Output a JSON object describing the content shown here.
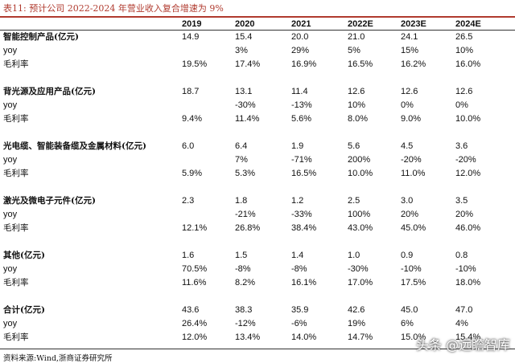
{
  "title": "表11:  预计公司 2022-2024 年营业收入复合增速为 9%",
  "columns": [
    "2019",
    "2020",
    "2021",
    "2022E",
    "2023E",
    "2024E"
  ],
  "segments": [
    {
      "name": "智能控制产品(亿元)",
      "values": [
        "14.9",
        "15.4",
        "20.0",
        "21.0",
        "24.1",
        "26.5"
      ],
      "yoy_label": "yoy",
      "yoy": [
        "",
        "3%",
        "29%",
        "5%",
        "15%",
        "10%"
      ],
      "margin_label": "毛利率",
      "margin": [
        "19.5%",
        "17.4%",
        "16.9%",
        "16.5%",
        "16.2%",
        "16.0%"
      ]
    },
    {
      "name": "背光源及应用产品(亿元)",
      "values": [
        "18.7",
        "13.1",
        "11.4",
        "12.6",
        "12.6",
        "12.6"
      ],
      "yoy_label": "yoy",
      "yoy": [
        "",
        "-30%",
        "-13%",
        "10%",
        "0%",
        "0%"
      ],
      "margin_label": "毛利率",
      "margin": [
        "9.4%",
        "11.4%",
        "5.6%",
        "8.0%",
        "9.0%",
        "10.0%"
      ]
    },
    {
      "name": "光电缆、智能装备缆及金属材料(亿元)",
      "values": [
        "6.0",
        "6.4",
        "1.9",
        "5.6",
        "4.5",
        "3.6"
      ],
      "yoy_label": "yoy",
      "yoy": [
        "",
        "7%",
        "-71%",
        "200%",
        "-20%",
        "-20%"
      ],
      "margin_label": "毛利率",
      "margin": [
        "5.9%",
        "5.3%",
        "16.5%",
        "10.0%",
        "11.0%",
        "12.0%"
      ]
    },
    {
      "name": "激光及微电子元件(亿元)",
      "values": [
        "2.3",
        "1.8",
        "1.2",
        "2.5",
        "3.0",
        "3.5"
      ],
      "yoy_label": "yoy",
      "yoy": [
        "",
        "-21%",
        "-33%",
        "100%",
        "20%",
        "20%"
      ],
      "margin_label": "毛利率",
      "margin": [
        "12.1%",
        "26.8%",
        "38.4%",
        "43.0%",
        "45.0%",
        "46.0%"
      ]
    },
    {
      "name": "其他(亿元)",
      "values": [
        "1.6",
        "1.5",
        "1.4",
        "1.0",
        "0.9",
        "0.8"
      ],
      "yoy_label": "yoy",
      "yoy": [
        "70.5%",
        "-8%",
        "-8%",
        "-30%",
        "-10%",
        "-10%"
      ],
      "margin_label": "毛利率",
      "margin": [
        "11.6%",
        "8.2%",
        "16.1%",
        "17.0%",
        "17.5%",
        "18.0%"
      ]
    },
    {
      "name": "合计(亿元)",
      "values": [
        "43.6",
        "38.3",
        "35.9",
        "42.6",
        "45.0",
        "47.0"
      ],
      "yoy_label": "yoy",
      "yoy": [
        "26.4%",
        "-12%",
        "-6%",
        "19%",
        "6%",
        "4%"
      ],
      "margin_label": "毛利率",
      "margin": [
        "12.0%",
        "13.4%",
        "14.0%",
        "14.7%",
        "15.0%",
        "15.4%"
      ]
    }
  ],
  "source": "资料来源:Wind,浙商证券研究所",
  "watermark": "头条 @远瞻智库"
}
